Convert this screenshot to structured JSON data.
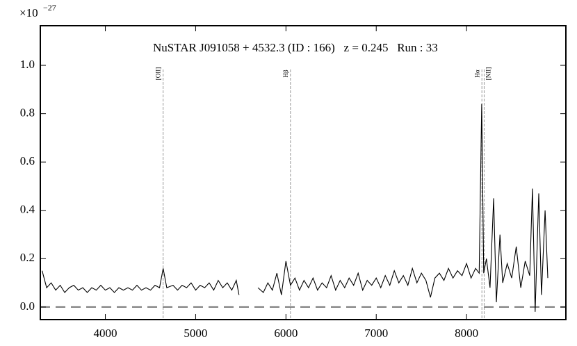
{
  "chart_data": {
    "type": "line",
    "title": "NuSTAR J091058 + 4532.3 (ID : 166)   z = 0.245   Run : 33",
    "y_scale_label": {
      "base": "×10",
      "exponent": "−27"
    },
    "color": "#000000",
    "xlim": [
      3280,
      9100
    ],
    "ylim": [
      -0.052,
      1.164
    ],
    "xticks": [
      4000,
      5000,
      6000,
      7000,
      8000
    ],
    "yticks": [
      {
        "value": 0,
        "label": "0.0"
      },
      0.2,
      0.4,
      0.6,
      0.8,
      {
        "value": 1,
        "label": "1.0"
      }
    ],
    "hline": 0,
    "emission_lines": [
      {
        "label": "[OII]",
        "x": 4640
      },
      {
        "label": "Hβ",
        "x": 6050
      },
      {
        "label": "Hα",
        "x": 8170
      },
      {
        "label": "[NII]",
        "x": 8195
      }
    ],
    "x": [
      3300,
      3350,
      3400,
      3450,
      3500,
      3550,
      3600,
      3650,
      3700,
      3750,
      3800,
      3850,
      3900,
      3950,
      4000,
      4050,
      4100,
      4150,
      4200,
      4250,
      4300,
      4350,
      4400,
      4450,
      4500,
      4550,
      4600,
      4640,
      4680,
      4750,
      4800,
      4850,
      4900,
      4950,
      5000,
      5050,
      5100,
      5150,
      5200,
      5250,
      5300,
      5350,
      5400,
      5450,
      5480,
      5580,
      5690,
      5750,
      5800,
      5850,
      5900,
      5950,
      6000,
      6050,
      6100,
      6150,
      6200,
      6250,
      6300,
      6350,
      6400,
      6450,
      6500,
      6550,
      6600,
      6650,
      6700,
      6750,
      6800,
      6850,
      6900,
      6950,
      7000,
      7050,
      7100,
      7150,
      7200,
      7250,
      7300,
      7350,
      7400,
      7450,
      7500,
      7550,
      7600,
      7650,
      7700,
      7750,
      7800,
      7850,
      7900,
      7950,
      8000,
      8050,
      8100,
      8140,
      8168,
      8190,
      8220,
      8260,
      8300,
      8330,
      8370,
      8400,
      8450,
      8500,
      8550,
      8600,
      8650,
      8700,
      8730,
      8760,
      8800,
      8830,
      8870,
      8900
    ],
    "values": [
      0.15,
      0.08,
      0.1,
      0.07,
      0.09,
      0.06,
      0.08,
      0.09,
      0.07,
      0.08,
      0.06,
      0.08,
      0.07,
      0.09,
      0.07,
      0.08,
      0.06,
      0.08,
      0.07,
      0.08,
      0.07,
      0.09,
      0.07,
      0.08,
      0.07,
      0.09,
      0.08,
      0.16,
      0.08,
      0.09,
      0.07,
      0.09,
      0.08,
      0.1,
      0.07,
      0.09,
      0.08,
      0.1,
      0.07,
      0.11,
      0.08,
      0.1,
      0.07,
      0.11,
      0.05,
      null,
      0.08,
      0.06,
      0.1,
      0.07,
      0.14,
      0.05,
      0.19,
      0.09,
      0.12,
      0.07,
      0.11,
      0.08,
      0.12,
      0.07,
      0.1,
      0.08,
      0.13,
      0.07,
      0.11,
      0.08,
      0.12,
      0.09,
      0.14,
      0.07,
      0.11,
      0.09,
      0.12,
      0.08,
      0.13,
      0.09,
      0.15,
      0.1,
      0.13,
      0.09,
      0.16,
      0.1,
      0.14,
      0.11,
      0.04,
      0.12,
      0.14,
      0.11,
      0.16,
      0.12,
      0.15,
      0.13,
      0.18,
      0.12,
      0.16,
      0.14,
      0.84,
      0.14,
      0.2,
      0.08,
      0.45,
      0.02,
      0.3,
      0.1,
      0.18,
      0.12,
      0.25,
      0.08,
      0.19,
      0.13,
      0.49,
      -0.02,
      0.47,
      0.05,
      0.4,
      0.12
    ]
  }
}
